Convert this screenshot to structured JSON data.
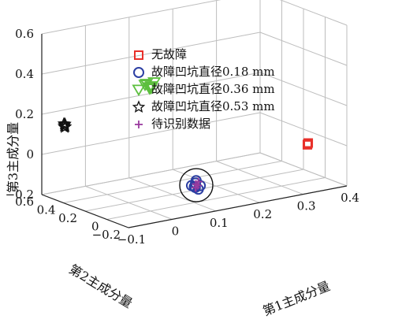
{
  "chart_data": {
    "type": "scatter",
    "projection": "3d",
    "xlabel": "第1主成分量",
    "ylabel": "第2主成分量",
    "zlabel": "第3主成分量",
    "xlim": [
      -0.1,
      0.4
    ],
    "ylim": [
      -0.2,
      0.6
    ],
    "zlim": [
      -0.2,
      0.6
    ],
    "xticks": [
      "−0.1",
      "0",
      "0.1",
      "0.2",
      "0.3",
      "0.4"
    ],
    "yticks": [
      "−0.2",
      "0",
      "0.2",
      "0.4",
      "0.6"
    ],
    "zticks": [
      "−0.2",
      "0",
      "0.2",
      "0.4",
      "0.6"
    ],
    "grid": true,
    "legend_position": "top-center",
    "series": [
      {
        "name": "无故障",
        "marker": "square",
        "color": "#e8302a",
        "points": [
          [
            0.33,
            -0.12,
            0.02
          ],
          [
            0.332,
            -0.118,
            0.025
          ],
          [
            0.329,
            -0.122,
            0.018
          ]
        ]
      },
      {
        "name": "故障凹坑直径0.18 mm",
        "marker": "circle",
        "color": "#2c3fa3",
        "points": [
          [
            0.052,
            -0.195,
            -0.06
          ],
          [
            0.056,
            -0.19,
            -0.045
          ],
          [
            0.06,
            -0.2,
            -0.075
          ],
          [
            0.048,
            -0.185,
            -0.055
          ],
          [
            0.065,
            -0.198,
            -0.06
          ],
          [
            0.055,
            -0.2,
            -0.03
          ],
          [
            0.058,
            -0.18,
            -0.07
          ]
        ]
      },
      {
        "name": "故障凹坑直径0.36 mm",
        "marker": "triangle-down",
        "color": "#5cbf3e",
        "points": [
          [
            0.06,
            0.28,
            0.35
          ],
          [
            0.068,
            0.28,
            0.33
          ],
          [
            0.074,
            0.29,
            0.33
          ],
          [
            0.066,
            0.26,
            0.33
          ],
          [
            0.078,
            0.28,
            0.35
          ],
          [
            0.07,
            0.29,
            0.32
          ],
          [
            0.062,
            0.3,
            0.34
          ]
        ]
      },
      {
        "name": "故障凹坑直径0.53 mm",
        "marker": "star",
        "color": "#111111",
        "points": [
          [
            -0.1,
            0.39,
            0.19
          ],
          [
            -0.098,
            0.393,
            0.193
          ],
          [
            -0.102,
            0.387,
            0.186
          ],
          [
            -0.099,
            0.385,
            0.182
          ],
          [
            -0.101,
            0.392,
            0.196
          ],
          [
            -0.1,
            0.389,
            0.178
          ]
        ]
      },
      {
        "name": "待识别数据",
        "marker": "plus",
        "color": "#9a3a9e",
        "points": [
          [
            0.057,
            -0.19,
            -0.05
          ],
          [
            0.054,
            -0.198,
            -0.065
          ],
          [
            0.062,
            -0.192,
            -0.04
          ],
          [
            0.058,
            -0.185,
            -0.07
          ],
          [
            0.06,
            -0.195,
            -0.058
          ]
        ]
      }
    ],
    "annotations": [
      {
        "type": "circle",
        "around": "故障凹坑直径0.18 mm",
        "center": [
          0.057,
          -0.193,
          -0.055
        ]
      }
    ]
  }
}
